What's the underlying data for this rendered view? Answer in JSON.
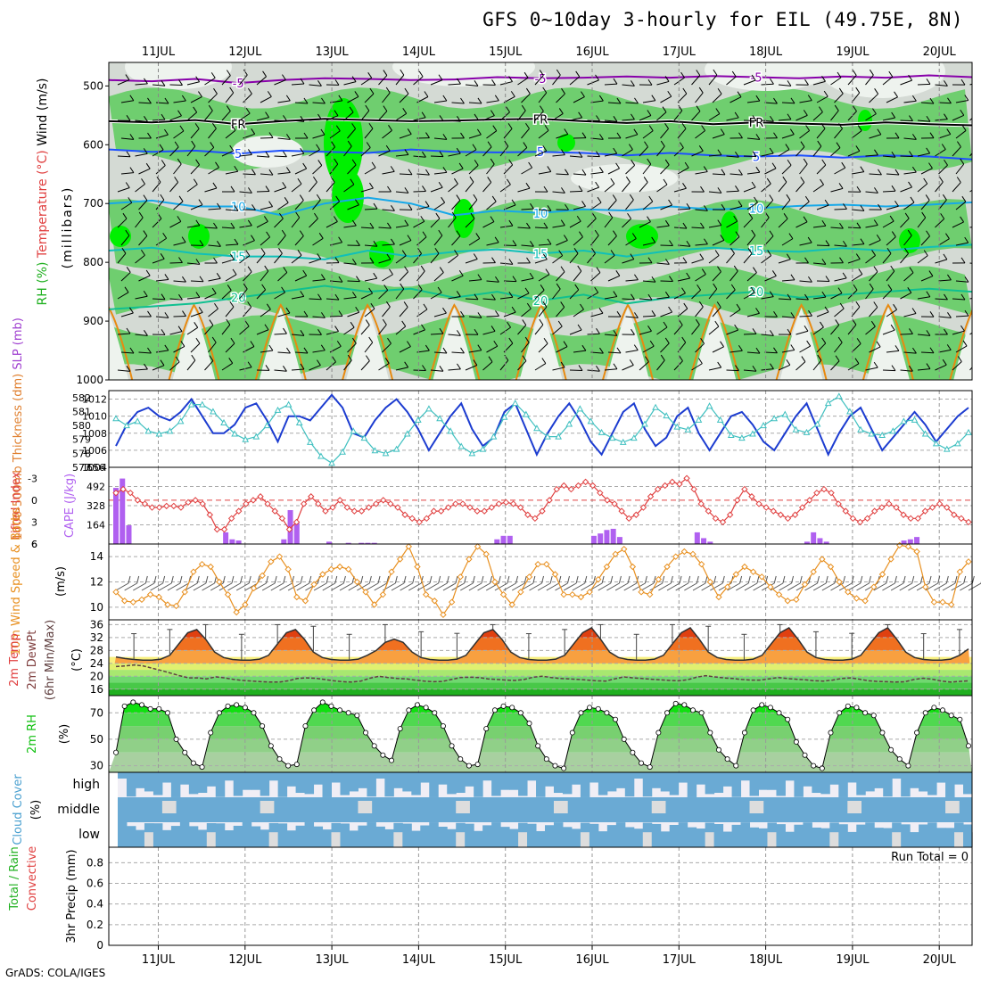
{
  "title": "GFS 0~10day 3-hourly for EIL (49.75E, 8N)",
  "footer": "GrADS: COLA/IGES",
  "colors": {
    "rh_light": "#d4dad4",
    "rh_mid": "#6fce6f",
    "rh_high": "#00f000",
    "temp_m5": "#8800aa",
    "freezing": "#000000",
    "temp_5": "#1e50ff",
    "temp_10": "#16a8e8",
    "temp_15": "#10c0b8",
    "temp_20": "#10c090",
    "temp_25": "#e88a10",
    "slp": "#1c3cd0",
    "thickness": "#40c0c0",
    "cape_bar": "#b060f0",
    "lifted_index": "#e04040",
    "wind_speed": "#e89020",
    "dewpoint": "#604040",
    "rh2m": "#10d010",
    "cloud": "#6aaad4",
    "cloud_bg": "#f0eef5"
  },
  "chart_data": [
    {
      "type": "heatmap",
      "panel": "upper-air",
      "ylabel_parts": [
        "RH (%)",
        "Temperature (°C)",
        "Wind (m/s)"
      ],
      "ylabel2": "(millibars)",
      "categories_top": [
        "11JUL",
        "12JUL",
        "13JUL",
        "14JUL",
        "15JUL",
        "16JUL",
        "17JUL",
        "18JUL",
        "19JUL",
        "20JUL"
      ],
      "yticks": [
        500,
        600,
        700,
        800,
        900,
        1000
      ],
      "ylim": [
        1000,
        460
      ],
      "isotherms": [
        {
          "label": "-5",
          "levels_mb": [
            490,
            492,
            488,
            495,
            490,
            487,
            488,
            490,
            489,
            485,
            487,
            486,
            484,
            486,
            483,
            485,
            487,
            484,
            486,
            482,
            485
          ]
        },
        {
          "label": "FR",
          "levels_mb": [
            560,
            562,
            558,
            565,
            560,
            556,
            558,
            560,
            559,
            557,
            556,
            560,
            563,
            560,
            565,
            562,
            564,
            566,
            562,
            565,
            567
          ]
        },
        {
          "label": "5",
          "levels_mb": [
            608,
            612,
            610,
            615,
            610,
            612,
            614,
            608,
            612,
            613,
            612,
            614,
            618,
            614,
            618,
            620,
            618,
            622,
            618,
            620,
            625
          ]
        },
        {
          "label": "10",
          "levels_mb": [
            700,
            695,
            705,
            705,
            720,
            700,
            690,
            700,
            720,
            712,
            716,
            710,
            712,
            705,
            710,
            708,
            704,
            702,
            705,
            702,
            698
          ]
        },
        {
          "label": "15",
          "levels_mb": [
            780,
            775,
            785,
            790,
            790,
            795,
            780,
            790,
            782,
            778,
            785,
            780,
            790,
            780,
            775,
            780,
            782,
            776,
            780,
            774,
            770
          ]
        },
        {
          "label": "20",
          "levels_mb": [
            880,
            875,
            870,
            860,
            850,
            840,
            850,
            845,
            860,
            850,
            865,
            855,
            870,
            860,
            855,
            850,
            860,
            855,
            850,
            845,
            850
          ]
        }
      ]
    },
    {
      "type": "line",
      "panel": "slp-thickness",
      "ylabel_left": "1000-500mb Thickness (dm)",
      "ylabel_right": "SLP (mb)",
      "yticks_left": [
        577,
        578,
        579,
        580,
        581,
        582
      ],
      "yticks_right": [
        1004,
        1006,
        1008,
        1010,
        1012
      ],
      "ylim_left": [
        577,
        582.5
      ],
      "ylim_right": [
        1004,
        1013
      ],
      "series": [
        {
          "name": "SLP (mb)",
          "axis": "right",
          "values": [
            1006.5,
            1009,
            1010.5,
            1011,
            1010,
            1009.5,
            1010.5,
            1012,
            1010,
            1008,
            1008,
            1009,
            1011,
            1011.5,
            1009.5,
            1007,
            1010,
            1010,
            1009.5,
            1011,
            1012.5,
            1011,
            1008,
            1007.5,
            1009.5,
            1011,
            1012,
            1010.5,
            1008.5,
            1006,
            1008,
            1010,
            1011.5,
            1008.5,
            1006.5,
            1007.5,
            1010.5,
            1011.5,
            1008.5,
            1005.5,
            1008,
            1010,
            1011.5,
            1009.5,
            1007,
            1005.5,
            1008,
            1010.5,
            1011.5,
            1008.5,
            1006.5,
            1007.5,
            1010,
            1011,
            1008,
            1006,
            1008,
            1010,
            1010.5,
            1009,
            1007,
            1006,
            1008,
            1010,
            1011.5,
            1008.5,
            1005.5,
            1008,
            1010,
            1011,
            1008.5,
            1006,
            1007.5,
            1009,
            1010.5,
            1009,
            1007,
            1008.5,
            1010,
            1011
          ]
        },
        {
          "name": "1000-500mb Thickness (dm)",
          "axis": "left",
          "values": [
            580.5,
            580,
            580.3,
            579.6,
            579.4,
            579.6,
            580.3,
            581.5,
            581.5,
            581,
            580.2,
            579.4,
            579,
            579.2,
            580,
            581.1,
            581.5,
            580.2,
            578.8,
            577.8,
            577.3,
            578.1,
            579.6,
            579.1,
            578.2,
            578,
            578.3,
            579.4,
            580.4,
            581.2,
            580.5,
            579.6,
            578.5,
            578,
            578.3,
            579.2,
            580.6,
            581.6,
            580.8,
            579.8,
            579.2,
            579.2,
            580.1,
            581.2,
            580.3,
            579.5,
            579.1,
            578.8,
            579.1,
            580.1,
            581.3,
            580.7,
            579.9,
            579.7,
            580.4,
            581.4,
            580.4,
            579.3,
            579.1,
            579.4,
            580,
            580.5,
            580.8,
            579.7,
            579.5,
            580.1,
            581.6,
            582.1,
            581,
            579.7,
            579.4,
            579.3,
            579.6,
            580.3,
            580.4,
            579.4,
            578.7,
            578.3,
            578.7,
            579.5
          ]
        }
      ]
    },
    {
      "type": "bar",
      "panel": "cape-li",
      "ylabel_left": "Lifted Index",
      "ylabel_right": "CAPE (J/kg)",
      "yticks_left": [
        -3,
        0,
        3,
        6
      ],
      "yticks_right": [
        164,
        328,
        492,
        656
      ],
      "ylim_cape": [
        0,
        656
      ],
      "cape_values": [
        480,
        560,
        160,
        0,
        0,
        0,
        0,
        0,
        0,
        0,
        0,
        0,
        0,
        0,
        0,
        0,
        0,
        100,
        40,
        30,
        0,
        0,
        0,
        0,
        0,
        0,
        40,
        290,
        180,
        0,
        0,
        0,
        0,
        20,
        0,
        0,
        10,
        0,
        10,
        10,
        10,
        0,
        0,
        0,
        0,
        0,
        0,
        0,
        0,
        0,
        0,
        0,
        0,
        0,
        0,
        0,
        0,
        0,
        0,
        40,
        70,
        70,
        0,
        0,
        0,
        0,
        0,
        0,
        0,
        0,
        0,
        0,
        0,
        0,
        70,
        90,
        120,
        130,
        60,
        0,
        0,
        0,
        0,
        0,
        0,
        0,
        0,
        0,
        0,
        0,
        100,
        50,
        20,
        0,
        0,
        0,
        0,
        0,
        0,
        0,
        0,
        0,
        0,
        0,
        0,
        0,
        0,
        20,
        100,
        50,
        20,
        0,
        0,
        0,
        0,
        0,
        0,
        0,
        0,
        0,
        0,
        0,
        30,
        40,
        60,
        0,
        0,
        0,
        0,
        0,
        0,
        0,
        0
      ],
      "lifted_index": [
        -1,
        -1.5,
        -1,
        0,
        0.5,
        1,
        1,
        0.8,
        0.8,
        1,
        0.3,
        0,
        0.5,
        2,
        4,
        4,
        2.5,
        1.5,
        0.5,
        0,
        -0.5,
        0.5,
        1.5,
        2.5,
        4,
        3,
        0.5,
        -0.5,
        0.5,
        1.5,
        1,
        0,
        1,
        1.5,
        1.5,
        1,
        0.5,
        0,
        0.5,
        1,
        2,
        2.5,
        3,
        2.5,
        1.5,
        1.5,
        1,
        0.5,
        0.5,
        1,
        1.5,
        1.5,
        1,
        0.5,
        0.3,
        0.5,
        1,
        2,
        2.5,
        1.5,
        0,
        -1.5,
        -2,
        -1.5,
        -2,
        -2.5,
        -2,
        -1,
        0,
        0.5,
        1.5,
        2.5,
        2,
        1,
        -0.5,
        -1.5,
        -2,
        -2.5,
        -2.2,
        -3,
        -1.5,
        0.5,
        1.5,
        2.5,
        3,
        2,
        0,
        -1.5,
        -0.5,
        0.5,
        1,
        1.5,
        2,
        2.5,
        2,
        1,
        0,
        -1,
        -1.5,
        -1,
        0.5,
        1.5,
        2.5,
        3,
        2.5,
        1.5,
        1,
        0.5,
        1,
        2,
        2.5,
        2.5,
        1.5,
        1,
        0.5,
        1,
        2,
        2.5,
        3
      ]
    },
    {
      "type": "line",
      "panel": "wind10m",
      "ylabel": "10m Wind Speed & Barbs",
      "unit": "(m/s)",
      "yticks": [
        10,
        12,
        14
      ],
      "ylim": [
        9,
        15
      ],
      "values": [
        11.2,
        10.5,
        10.4,
        10.6,
        11,
        10.8,
        10.2,
        10.1,
        11.2,
        12.8,
        13.4,
        13.2,
        12,
        11,
        9.6,
        10.2,
        11.5,
        12.5,
        13.6,
        14,
        13,
        10.8,
        10.5,
        11.8,
        12.6,
        13,
        13.2,
        13,
        12,
        11.2,
        10.2,
        11,
        12.8,
        13.8,
        14.8,
        13.2,
        11,
        10.5,
        9.4,
        10.4,
        12.4,
        13.8,
        14.8,
        14.2,
        12,
        11,
        10.2,
        11.2,
        12.4,
        13.4,
        13.4,
        12.6,
        11,
        11,
        10.8,
        11.2,
        12.2,
        13.2,
        14.2,
        14.6,
        13.2,
        11.2,
        11,
        12.2,
        13.2,
        14,
        14.4,
        14.2,
        13.4,
        12,
        10.8,
        11.6,
        12.6,
        13.2,
        12.8,
        12.4,
        11.6,
        11,
        10.5,
        10.6,
        11.8,
        12.8,
        13.8,
        13.2,
        12,
        11.2,
        10.7,
        10.5,
        11.6,
        12.6,
        13.8,
        14.9,
        14.8,
        14.4,
        11.6,
        10.4,
        10.4,
        10.2,
        12.8,
        13.6
      ]
    },
    {
      "type": "area",
      "panel": "temp2m",
      "ylabel": "2m Temp / 2m DewPt / (6hr Min/Max)",
      "unit": "(°C)",
      "yticks": [
        16,
        20,
        24,
        28,
        32,
        36
      ],
      "ylim": [
        14,
        37.5
      ],
      "temp": [
        26,
        25.5,
        25.2,
        25,
        25,
        25.3,
        26.5,
        30,
        33.5,
        34.5,
        31.5,
        27.5,
        25.8,
        25.2,
        25,
        25,
        25.3,
        26.5,
        30,
        33.5,
        34.5,
        31.5,
        27.5,
        25.8,
        25.2,
        25,
        25,
        25.3,
        26.5,
        28,
        30.5,
        31.5,
        30.5,
        27.5,
        25.8,
        25.2,
        25,
        25,
        25.3,
        26.5,
        30,
        33.5,
        34.5,
        31.5,
        27.5,
        25.8,
        25.2,
        25,
        25,
        25.3,
        26.5,
        30,
        33.5,
        35,
        31.5,
        27.5,
        25.8,
        25.2,
        25,
        25,
        25.3,
        26.5,
        30,
        33.5,
        35,
        31.5,
        27.5,
        25.8,
        25.2,
        25,
        25,
        25.3,
        26.5,
        30,
        33.5,
        35,
        31.5,
        27.5,
        25.8,
        25.2,
        25,
        25,
        25.3,
        26.5,
        30,
        33.5,
        35,
        31.5,
        27.5,
        25.8,
        25.2,
        25,
        25,
        25.3,
        26.5,
        28.5
      ],
      "dewpoint": [
        23,
        23.2,
        23.5,
        23.2,
        22.5,
        21.8,
        21,
        20.2,
        19.5,
        19.5,
        19.2,
        19.8,
        19.5,
        19,
        18.7,
        18.5,
        18.3,
        18.2,
        18.2,
        18.6,
        19.3,
        19.5,
        19.4,
        19,
        18.6,
        18.3,
        18.2,
        18.5,
        19.4,
        20,
        19.6,
        19.3,
        19.2,
        18.8,
        18.5,
        18.3,
        18.4,
        19,
        19.6,
        19.7,
        19.6,
        19.2,
        19,
        18.8,
        18.7,
        19,
        19.7,
        20,
        19.6,
        19.3,
        19.2,
        19,
        18.8,
        18.6,
        18.5,
        19.2,
        19.8,
        19.5,
        19.3,
        19.1,
        18.9,
        18.7,
        18.6,
        18.9,
        19.7,
        20.2,
        19.8,
        19.5,
        19.3,
        19,
        18.8,
        18.8,
        19.2,
        19.6,
        19.3,
        19.1,
        18.9,
        18.6,
        18.5,
        18.8,
        19.3,
        19.5,
        19.1,
        18.6,
        18.4,
        18.3,
        18.2,
        18.3,
        19,
        19.4,
        19.1,
        18.5,
        18.2,
        18.4,
        18.6
      ]
    },
    {
      "type": "area",
      "panel": "rh2m",
      "ylabel": "2m RH",
      "unit": "(%)",
      "yticks": [
        30,
        50,
        70
      ],
      "ylim": [
        25,
        83
      ],
      "values": [
        40,
        75,
        78,
        76,
        73,
        73,
        70,
        50,
        40,
        32,
        29,
        55,
        70,
        75,
        76,
        74,
        70,
        60,
        45,
        35,
        30,
        31,
        60,
        72,
        78,
        75,
        72,
        70,
        68,
        55,
        45,
        38,
        34,
        58,
        72,
        76,
        74,
        70,
        60,
        45,
        35,
        30,
        31,
        58,
        72,
        75,
        74,
        70,
        62,
        45,
        35,
        30,
        28,
        55,
        70,
        74,
        73,
        70,
        65,
        50,
        40,
        32,
        29,
        55,
        70,
        77,
        76,
        72,
        70,
        55,
        42,
        35,
        30,
        55,
        72,
        76,
        74,
        70,
        65,
        48,
        38,
        30,
        28,
        55,
        70,
        75,
        74,
        70,
        68,
        55,
        42,
        35,
        30,
        55,
        70,
        74,
        72,
        68,
        65,
        45
      ]
    },
    {
      "type": "heatmap",
      "panel": "cloud",
      "ylabel": "Cloud Cover (%)",
      "rows": [
        "high",
        "middle",
        "low"
      ]
    },
    {
      "type": "bar",
      "panel": "precip",
      "ylabel_parts": [
        "Total / Rain",
        "Convective"
      ],
      "ylabel2": "3hr Precip (mm)",
      "yticks": [
        0,
        0.2,
        0.4,
        0.6,
        0.8
      ],
      "ylim": [
        0,
        0.95
      ],
      "run_total_label": "Run Total = 0",
      "categories_bottom": [
        "11JUL",
        "12JUL",
        "13JUL",
        "14JUL",
        "15JUL",
        "16JUL",
        "17JUL",
        "18JUL",
        "19JUL",
        "20JUL"
      ],
      "values": []
    }
  ]
}
